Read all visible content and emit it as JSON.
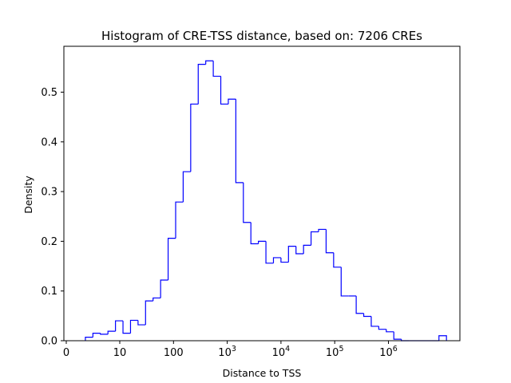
{
  "chart_data": {
    "type": "histogram",
    "title": "Histogram of CRE-TSS distance, based on: 7206 CREs",
    "xlabel": "Distance to TSS",
    "ylabel": "Density",
    "x_scale": "symlog-like (log10 distance)",
    "x_tick_labels": [
      {
        "value": 0,
        "text": "0"
      },
      {
        "value": 10,
        "text": "10"
      },
      {
        "value": 100,
        "text": "100"
      },
      {
        "value": 1000,
        "base": "10",
        "exp": "3"
      },
      {
        "value": 10000,
        "base": "10",
        "exp": "4"
      },
      {
        "value": 100000,
        "base": "10",
        "exp": "5"
      },
      {
        "value": 1000000,
        "base": "10",
        "exp": "6"
      }
    ],
    "ylim": [
      0,
      0.58
    ],
    "y_ticks": [
      0.0,
      0.1,
      0.2,
      0.3,
      0.4,
      0.5
    ],
    "y_tick_labels": [
      "0.0",
      "0.1",
      "0.2",
      "0.3",
      "0.4",
      "0.5"
    ],
    "log10_bin_edges": [
      0.36,
      0.5,
      0.64,
      0.78,
      0.92,
      1.06,
      1.2,
      1.34,
      1.48,
      1.62,
      1.76,
      1.9,
      2.04,
      2.18,
      2.32,
      2.46,
      2.6,
      2.74,
      2.88,
      3.02,
      3.16,
      3.3,
      3.44,
      3.58,
      3.72,
      3.86,
      4.0,
      4.14,
      4.28,
      4.42,
      4.56,
      4.7,
      4.84,
      4.98,
      5.12,
      5.26,
      5.4,
      5.54,
      5.68,
      5.82,
      5.96,
      6.1,
      6.24,
      6.38,
      6.52,
      6.66,
      6.8,
      6.94,
      7.08
    ],
    "densities": [
      0.007,
      0.015,
      0.013,
      0.019,
      0.04,
      0.015,
      0.041,
      0.032,
      0.08,
      0.086,
      0.122,
      0.206,
      0.279,
      0.34,
      0.476,
      0.556,
      0.563,
      0.532,
      0.476,
      0.486,
      0.318,
      0.238,
      0.195,
      0.2,
      0.156,
      0.167,
      0.158,
      0.19,
      0.175,
      0.192,
      0.219,
      0.224,
      0.177,
      0.148,
      0.09,
      0.09,
      0.055,
      0.049,
      0.029,
      0.023,
      0.018,
      0.003,
      0.0,
      0.0,
      0.0,
      0.0,
      0.0,
      0.01
    ],
    "line_color": "#0000ff",
    "grid": false,
    "legend": "none"
  }
}
